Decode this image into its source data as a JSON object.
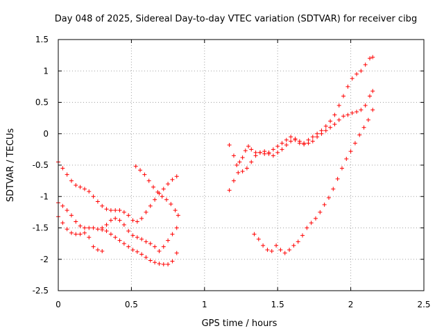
{
  "chart_data": {
    "type": "scatter",
    "title": "Day 048 of 2025, Sidereal Day-to-day VTEC variation (SDTVAR) for receiver cibg",
    "xlabel": "GPS time / hours",
    "ylabel": "SDTVAR / TECUs",
    "xlim": [
      0,
      2.5
    ],
    "ylim": [
      -2.5,
      1.5
    ],
    "xticks": [
      0,
      0.5,
      1,
      1.5,
      2,
      2.5
    ],
    "xtick_labels": [
      "0",
      "0.5",
      "1",
      "1.5",
      "2",
      "2.5"
    ],
    "yticks": [
      -2.5,
      -2,
      -1.5,
      -1,
      -0.5,
      0,
      0.5,
      1,
      1.5
    ],
    "ytick_labels": [
      "-2.5",
      "-2",
      "-1.5",
      "-1",
      "-0.5",
      "0",
      "0.5",
      "1",
      "1.5"
    ],
    "grid": true,
    "marker": "+",
    "color": "#ff0000",
    "series": [
      {
        "points": [
          [
            0.0,
            -0.45
          ],
          [
            0.03,
            -0.55
          ],
          [
            0.06,
            -0.65
          ],
          [
            0.09,
            -0.75
          ],
          [
            0.12,
            -0.82
          ],
          [
            0.15,
            -0.85
          ],
          [
            0.18,
            -0.88
          ],
          [
            0.21,
            -0.92
          ],
          [
            0.24,
            -1.0
          ],
          [
            0.27,
            -1.08
          ],
          [
            0.3,
            -1.15
          ],
          [
            0.33,
            -1.2
          ],
          [
            0.36,
            -1.22
          ],
          [
            0.39,
            -1.22
          ],
          [
            0.42,
            -1.22
          ],
          [
            0.45,
            -1.25
          ],
          [
            0.48,
            -1.3
          ],
          [
            0.51,
            -1.38
          ],
          [
            0.54,
            -1.4
          ],
          [
            0.57,
            -1.35
          ],
          [
            0.6,
            -1.25
          ],
          [
            0.63,
            -1.15
          ],
          [
            0.66,
            -1.05
          ],
          [
            0.69,
            -0.95
          ],
          [
            0.72,
            -0.88
          ],
          [
            0.75,
            -0.8
          ],
          [
            0.78,
            -0.73
          ],
          [
            0.81,
            -0.68
          ]
        ]
      },
      {
        "points": [
          [
            0.0,
            -1.1
          ],
          [
            0.03,
            -1.15
          ],
          [
            0.06,
            -1.22
          ],
          [
            0.09,
            -1.3
          ],
          [
            0.12,
            -1.4
          ],
          [
            0.15,
            -1.47
          ],
          [
            0.18,
            -1.5
          ],
          [
            0.21,
            -1.5
          ],
          [
            0.24,
            -1.5
          ],
          [
            0.27,
            -1.52
          ],
          [
            0.3,
            -1.53
          ],
          [
            0.33,
            -1.55
          ],
          [
            0.36,
            -1.6
          ],
          [
            0.39,
            -1.65
          ],
          [
            0.42,
            -1.7
          ],
          [
            0.45,
            -1.75
          ],
          [
            0.48,
            -1.8
          ],
          [
            0.51,
            -1.85
          ],
          [
            0.54,
            -1.88
          ],
          [
            0.57,
            -1.92
          ],
          [
            0.6,
            -1.97
          ],
          [
            0.63,
            -2.02
          ],
          [
            0.66,
            -2.05
          ],
          [
            0.69,
            -2.07
          ],
          [
            0.72,
            -2.08
          ],
          [
            0.75,
            -2.08
          ],
          [
            0.78,
            -2.03
          ],
          [
            0.81,
            -1.9
          ]
        ]
      },
      {
        "points": [
          [
            0.53,
            -0.52
          ],
          [
            0.56,
            -0.58
          ],
          [
            0.59,
            -0.65
          ],
          [
            0.62,
            -0.75
          ],
          [
            0.65,
            -0.85
          ],
          [
            0.68,
            -0.93
          ],
          [
            0.71,
            -1.0
          ],
          [
            0.74,
            -1.05
          ],
          [
            0.77,
            -1.12
          ],
          [
            0.8,
            -1.22
          ],
          [
            0.82,
            -1.3
          ]
        ]
      },
      {
        "points": [
          [
            0.0,
            -1.32
          ],
          [
            0.03,
            -1.42
          ],
          [
            0.06,
            -1.52
          ],
          [
            0.09,
            -1.58
          ],
          [
            0.12,
            -1.6
          ],
          [
            0.15,
            -1.6
          ],
          [
            0.18,
            -1.58
          ],
          [
            0.21,
            -1.65
          ],
          [
            0.24,
            -1.8
          ],
          [
            0.27,
            -1.85
          ],
          [
            0.3,
            -1.87
          ]
        ]
      },
      {
        "points": [
          [
            0.3,
            -1.5
          ],
          [
            0.33,
            -1.45
          ],
          [
            0.36,
            -1.38
          ],
          [
            0.39,
            -1.35
          ],
          [
            0.42,
            -1.38
          ],
          [
            0.45,
            -1.45
          ],
          [
            0.48,
            -1.55
          ],
          [
            0.51,
            -1.62
          ],
          [
            0.54,
            -1.65
          ],
          [
            0.57,
            -1.68
          ],
          [
            0.6,
            -1.72
          ],
          [
            0.63,
            -1.75
          ],
          [
            0.66,
            -1.8
          ],
          [
            0.69,
            -1.87
          ],
          [
            0.72,
            -1.8
          ],
          [
            0.75,
            -1.7
          ],
          [
            0.78,
            -1.6
          ],
          [
            0.81,
            -1.5
          ]
        ]
      },
      {
        "points": [
          [
            1.17,
            -0.18
          ],
          [
            1.2,
            -0.35
          ],
          [
            1.22,
            -0.5
          ],
          [
            1.24,
            -0.45
          ],
          [
            1.26,
            -0.38
          ],
          [
            1.28,
            -0.27
          ],
          [
            1.3,
            -0.2
          ],
          [
            1.32,
            -0.25
          ],
          [
            1.35,
            -0.3
          ],
          [
            1.38,
            -0.3
          ],
          [
            1.41,
            -0.32
          ],
          [
            1.44,
            -0.3
          ],
          [
            1.47,
            -0.25
          ],
          [
            1.5,
            -0.2
          ],
          [
            1.53,
            -0.15
          ],
          [
            1.56,
            -0.1
          ],
          [
            1.59,
            -0.05
          ],
          [
            1.62,
            -0.08
          ],
          [
            1.65,
            -0.12
          ],
          [
            1.68,
            -0.15
          ],
          [
            1.71,
            -0.1
          ],
          [
            1.74,
            -0.05
          ],
          [
            1.77,
            0.0
          ],
          [
            1.8,
            0.05
          ],
          [
            1.83,
            0.12
          ],
          [
            1.86,
            0.2
          ],
          [
            1.89,
            0.3
          ],
          [
            1.92,
            0.45
          ],
          [
            1.95,
            0.6
          ],
          [
            1.98,
            0.75
          ],
          [
            2.01,
            0.88
          ],
          [
            2.04,
            0.95
          ],
          [
            2.07,
            1.0
          ],
          [
            2.1,
            1.1
          ],
          [
            2.13,
            1.2
          ],
          [
            2.15,
            1.22
          ]
        ]
      },
      {
        "points": [
          [
            1.17,
            -0.9
          ],
          [
            1.2,
            -0.75
          ],
          [
            1.23,
            -0.62
          ],
          [
            1.26,
            -0.6
          ],
          [
            1.29,
            -0.55
          ],
          [
            1.32,
            -0.45
          ],
          [
            1.35,
            -0.35
          ],
          [
            1.38,
            -0.3
          ],
          [
            1.41,
            -0.28
          ],
          [
            1.44,
            -0.32
          ],
          [
            1.47,
            -0.35
          ],
          [
            1.5,
            -0.3
          ],
          [
            1.53,
            -0.25
          ],
          [
            1.56,
            -0.18
          ],
          [
            1.59,
            -0.12
          ],
          [
            1.62,
            -0.1
          ],
          [
            1.65,
            -0.15
          ],
          [
            1.68,
            -0.17
          ],
          [
            1.71,
            -0.15
          ],
          [
            1.74,
            -0.12
          ],
          [
            1.77,
            -0.05
          ],
          [
            1.8,
            0.0
          ],
          [
            1.83,
            0.05
          ],
          [
            1.86,
            0.1
          ],
          [
            1.89,
            0.15
          ],
          [
            1.92,
            0.22
          ],
          [
            1.95,
            0.28
          ],
          [
            1.98,
            0.3
          ],
          [
            2.01,
            0.33
          ],
          [
            2.04,
            0.35
          ],
          [
            2.07,
            0.38
          ],
          [
            2.1,
            0.45
          ],
          [
            2.13,
            0.6
          ],
          [
            2.15,
            0.68
          ]
        ]
      },
      {
        "points": [
          [
            1.34,
            -1.6
          ],
          [
            1.37,
            -1.68
          ],
          [
            1.4,
            -1.78
          ],
          [
            1.43,
            -1.85
          ],
          [
            1.46,
            -1.87
          ],
          [
            1.49,
            -1.78
          ],
          [
            1.52,
            -1.85
          ],
          [
            1.55,
            -1.9
          ],
          [
            1.58,
            -1.85
          ],
          [
            1.61,
            -1.78
          ],
          [
            1.64,
            -1.72
          ],
          [
            1.67,
            -1.62
          ],
          [
            1.7,
            -1.5
          ],
          [
            1.73,
            -1.42
          ],
          [
            1.76,
            -1.35
          ],
          [
            1.79,
            -1.25
          ],
          [
            1.82,
            -1.13
          ],
          [
            1.85,
            -1.02
          ],
          [
            1.88,
            -0.88
          ],
          [
            1.91,
            -0.72
          ],
          [
            1.94,
            -0.55
          ],
          [
            1.97,
            -0.4
          ],
          [
            2.0,
            -0.28
          ],
          [
            2.03,
            -0.15
          ],
          [
            2.06,
            -0.02
          ],
          [
            2.09,
            0.1
          ],
          [
            2.12,
            0.22
          ],
          [
            2.15,
            0.38
          ]
        ]
      }
    ]
  }
}
